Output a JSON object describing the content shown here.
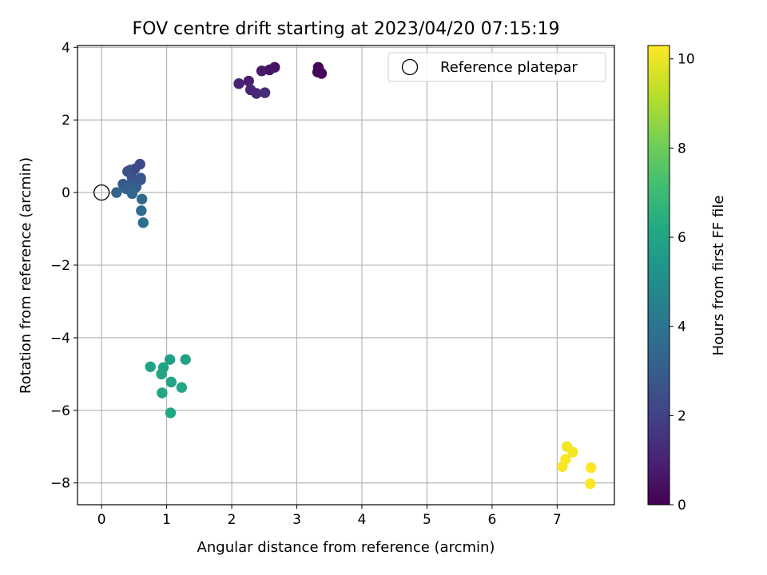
{
  "chart_data": {
    "type": "scatter",
    "title": "FOV centre drift starting at 2023/04/20 07:15:19",
    "xlabel": "Angular distance from reference (arcmin)",
    "ylabel": "Rotation from reference (arcmin)",
    "xlim": [
      -0.37,
      7.88
    ],
    "ylim": [
      -8.6,
      4.05
    ],
    "xticks": [
      0,
      1,
      2,
      3,
      4,
      5,
      6,
      7
    ],
    "yticks": [
      -8,
      -6,
      -4,
      -2,
      0,
      2,
      4
    ],
    "grid": true,
    "legend": {
      "placement": "top-right",
      "entries": [
        "Reference platepar"
      ]
    },
    "colorbar": {
      "label": "Hours from first FF file",
      "range": [
        0,
        10.3
      ],
      "ticks": [
        0,
        2,
        4,
        6,
        8,
        10
      ],
      "colormap": "viridis"
    },
    "reference_point": {
      "x": 0,
      "y": 0
    },
    "points": [
      {
        "x": 3.33,
        "y": 3.45,
        "hours": 0.1
      },
      {
        "x": 3.32,
        "y": 3.32,
        "hours": 0.15
      },
      {
        "x": 3.38,
        "y": 3.28,
        "hours": 0.2
      },
      {
        "x": 3.35,
        "y": 3.35,
        "hours": 0.25
      },
      {
        "x": 2.66,
        "y": 3.45,
        "hours": 0.5
      },
      {
        "x": 2.58,
        "y": 3.38,
        "hours": 0.6
      },
      {
        "x": 2.46,
        "y": 3.35,
        "hours": 0.7
      },
      {
        "x": 2.26,
        "y": 3.07,
        "hours": 0.9
      },
      {
        "x": 2.11,
        "y": 3.0,
        "hours": 1.0
      },
      {
        "x": 2.29,
        "y": 2.83,
        "hours": 1.1
      },
      {
        "x": 2.38,
        "y": 2.73,
        "hours": 1.2
      },
      {
        "x": 2.51,
        "y": 2.75,
        "hours": 1.3
      },
      {
        "x": 0.59,
        "y": 0.78,
        "hours": 2.2
      },
      {
        "x": 0.51,
        "y": 0.65,
        "hours": 2.3
      },
      {
        "x": 0.44,
        "y": 0.62,
        "hours": 2.4
      },
      {
        "x": 0.4,
        "y": 0.58,
        "hours": 2.5
      },
      {
        "x": 0.47,
        "y": 0.4,
        "hours": 2.6
      },
      {
        "x": 0.6,
        "y": 0.4,
        "hours": 2.7
      },
      {
        "x": 0.6,
        "y": 0.35,
        "hours": 2.8
      },
      {
        "x": 0.33,
        "y": 0.23,
        "hours": 2.9
      },
      {
        "x": 0.43,
        "y": 0.2,
        "hours": 3.0
      },
      {
        "x": 0.53,
        "y": 0.15,
        "hours": 3.1
      },
      {
        "x": 0.38,
        "y": 0.1,
        "hours": 3.2
      },
      {
        "x": 0.23,
        "y": 0.0,
        "hours": 3.3
      },
      {
        "x": 0.47,
        "y": -0.03,
        "hours": 3.4
      },
      {
        "x": 0.62,
        "y": -0.18,
        "hours": 3.5
      },
      {
        "x": 0.61,
        "y": -0.5,
        "hours": 3.6
      },
      {
        "x": 0.64,
        "y": -0.83,
        "hours": 3.7
      },
      {
        "x": 1.05,
        "y": -4.6,
        "hours": 5.8
      },
      {
        "x": 1.29,
        "y": -4.6,
        "hours": 5.85
      },
      {
        "x": 0.75,
        "y": -4.8,
        "hours": 5.9
      },
      {
        "x": 0.95,
        "y": -4.82,
        "hours": 5.95
      },
      {
        "x": 0.92,
        "y": -5.0,
        "hours": 6.0
      },
      {
        "x": 1.07,
        "y": -5.22,
        "hours": 6.05
      },
      {
        "x": 1.23,
        "y": -5.37,
        "hours": 6.1
      },
      {
        "x": 0.93,
        "y": -5.52,
        "hours": 6.15
      },
      {
        "x": 1.06,
        "y": -6.07,
        "hours": 6.2
      },
      {
        "x": 7.15,
        "y": -7.0,
        "hours": 10.1
      },
      {
        "x": 7.24,
        "y": -7.15,
        "hours": 10.15
      },
      {
        "x": 7.13,
        "y": -7.35,
        "hours": 10.2
      },
      {
        "x": 7.08,
        "y": -7.55,
        "hours": 10.25
      },
      {
        "x": 7.52,
        "y": -7.58,
        "hours": 10.3
      },
      {
        "x": 7.51,
        "y": -8.02,
        "hours": 10.3
      }
    ]
  }
}
